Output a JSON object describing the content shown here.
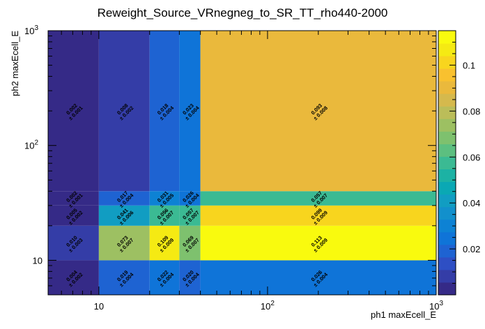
{
  "chart_data": {
    "type": "heatmap",
    "title": "Reweight_Source_VRnegneg_to_SR_TT_rho440-2000",
    "xlabel": "ph1 maxEcell_E",
    "ylabel": "ph2 maxEcell_E",
    "x_scale": "log",
    "y_scale": "log",
    "xlim": [
      5,
      1000
    ],
    "ylim": [
      5,
      1000
    ],
    "x_bin_edges": [
      5,
      10,
      20,
      30,
      40,
      1000
    ],
    "y_bin_edges": [
      5,
      10,
      20,
      30,
      40,
      1000
    ],
    "x_tick_labels": [
      {
        "value": 10,
        "label": "10"
      },
      {
        "value": 100,
        "label": "10",
        "exp": "2"
      },
      {
        "value": 1000,
        "label": "10",
        "exp": "3"
      }
    ],
    "y_tick_labels": [
      {
        "value": 10,
        "label": "10"
      },
      {
        "value": 100,
        "label": "10",
        "exp": "2"
      },
      {
        "value": 1000,
        "label": "10",
        "exp": "3"
      }
    ],
    "z_range": [
      0,
      0.115
    ],
    "z_tick_labels": [
      "0.02",
      "0.04",
      "0.06",
      "0.08",
      "0.1"
    ],
    "z_tick_values": [
      0.02,
      0.04,
      0.06,
      0.08,
      0.1
    ],
    "palette": [
      "#352a87",
      "#343da7",
      "#2e4fc4",
      "#1e63d2",
      "#0f74d8",
      "#0d82d4",
      "#1290cc",
      "#119dc2",
      "#0aa8b4",
      "#1cb2a4",
      "#3bba93",
      "#5cbf80",
      "#7ec16e",
      "#9dc062",
      "#bbbd59",
      "#d5b94d",
      "#eab93c",
      "#f9c12f",
      "#f8d51e",
      "#f5ea13",
      "#f9fa0e"
    ],
    "cells": [
      {
        "xbin": 0,
        "ybin": 0,
        "value": 0.004,
        "error": 0.002,
        "label": "0.004",
        "err_label": "± 0.002"
      },
      {
        "xbin": 1,
        "ybin": 0,
        "value": 0.019,
        "error": 0.004,
        "label": "0.019",
        "err_label": "± 0.004"
      },
      {
        "xbin": 2,
        "ybin": 0,
        "value": 0.022,
        "error": 0.004,
        "label": "0.022",
        "err_label": "± 0.004"
      },
      {
        "xbin": 3,
        "ybin": 0,
        "value": 0.02,
        "error": 0.004,
        "label": "0.020",
        "err_label": "± 0.004"
      },
      {
        "xbin": 4,
        "ybin": 0,
        "value": 0.026,
        "error": 0.004,
        "label": "0.026",
        "err_label": "± 0.004"
      },
      {
        "xbin": 0,
        "ybin": 1,
        "value": 0.01,
        "error": 0.003,
        "label": "0.010",
        "err_label": "± 0.003"
      },
      {
        "xbin": 1,
        "ybin": 1,
        "value": 0.073,
        "error": 0.007,
        "label": "0.073",
        "err_label": "± 0.007"
      },
      {
        "xbin": 2,
        "ybin": 1,
        "value": 0.109,
        "error": 0.009,
        "label": "0.109",
        "err_label": "± 0.009"
      },
      {
        "xbin": 3,
        "ybin": 1,
        "value": 0.069,
        "error": 0.007,
        "label": "0.069",
        "err_label": "± 0.007"
      },
      {
        "xbin": 4,
        "ybin": 1,
        "value": 0.113,
        "error": 0.009,
        "label": "0.113",
        "err_label": "± 0.009"
      },
      {
        "xbin": 0,
        "ybin": 2,
        "value": 0.005,
        "error": 0.002,
        "label": "0.005",
        "err_label": "± 0.002"
      },
      {
        "xbin": 1,
        "ybin": 2,
        "value": 0.041,
        "error": 0.006,
        "label": "0.041",
        "err_label": "± 0.006"
      },
      {
        "xbin": 2,
        "ybin": 2,
        "value": 0.056,
        "error": 0.007,
        "label": "0.056",
        "err_label": "± 0.007"
      },
      {
        "xbin": 3,
        "ybin": 2,
        "value": 0.057,
        "error": 0.007,
        "label": "0.057",
        "err_label": "± 0.007"
      },
      {
        "xbin": 4,
        "ybin": 2,
        "value": 0.099,
        "error": 0.009,
        "label": "0.099",
        "err_label": "± 0.009"
      },
      {
        "xbin": 0,
        "ybin": 3,
        "value": 0.002,
        "error": 0.001,
        "label": "0.002",
        "err_label": "± 0.001"
      },
      {
        "xbin": 1,
        "ybin": 3,
        "value": 0.017,
        "error": 0.004,
        "label": "0.017",
        "err_label": "± 0.004"
      },
      {
        "xbin": 2,
        "ybin": 3,
        "value": 0.031,
        "error": 0.005,
        "label": "0.031",
        "err_label": "± 0.005"
      },
      {
        "xbin": 3,
        "ybin": 3,
        "value": 0.026,
        "error": 0.004,
        "label": "0.026",
        "err_label": "± 0.004"
      },
      {
        "xbin": 4,
        "ybin": 3,
        "value": 0.057,
        "error": 0.007,
        "label": "0.057",
        "err_label": "± 0.007"
      },
      {
        "xbin": 0,
        "ybin": 4,
        "value": 0.002,
        "error": 0.001,
        "label": "0.002",
        "err_label": "± 0.001"
      },
      {
        "xbin": 1,
        "ybin": 4,
        "value": 0.008,
        "error": 0.002,
        "label": "0.008",
        "err_label": "± 0.002"
      },
      {
        "xbin": 2,
        "ybin": 4,
        "value": 0.018,
        "error": 0.004,
        "label": "0.018",
        "err_label": "± 0.004"
      },
      {
        "xbin": 3,
        "ybin": 4,
        "value": 0.023,
        "error": 0.004,
        "label": "0.023",
        "err_label": "± 0.004"
      },
      {
        "xbin": 4,
        "ybin": 4,
        "value": 0.093,
        "error": 0.008,
        "label": "0.093",
        "err_label": "± 0.008"
      }
    ]
  }
}
